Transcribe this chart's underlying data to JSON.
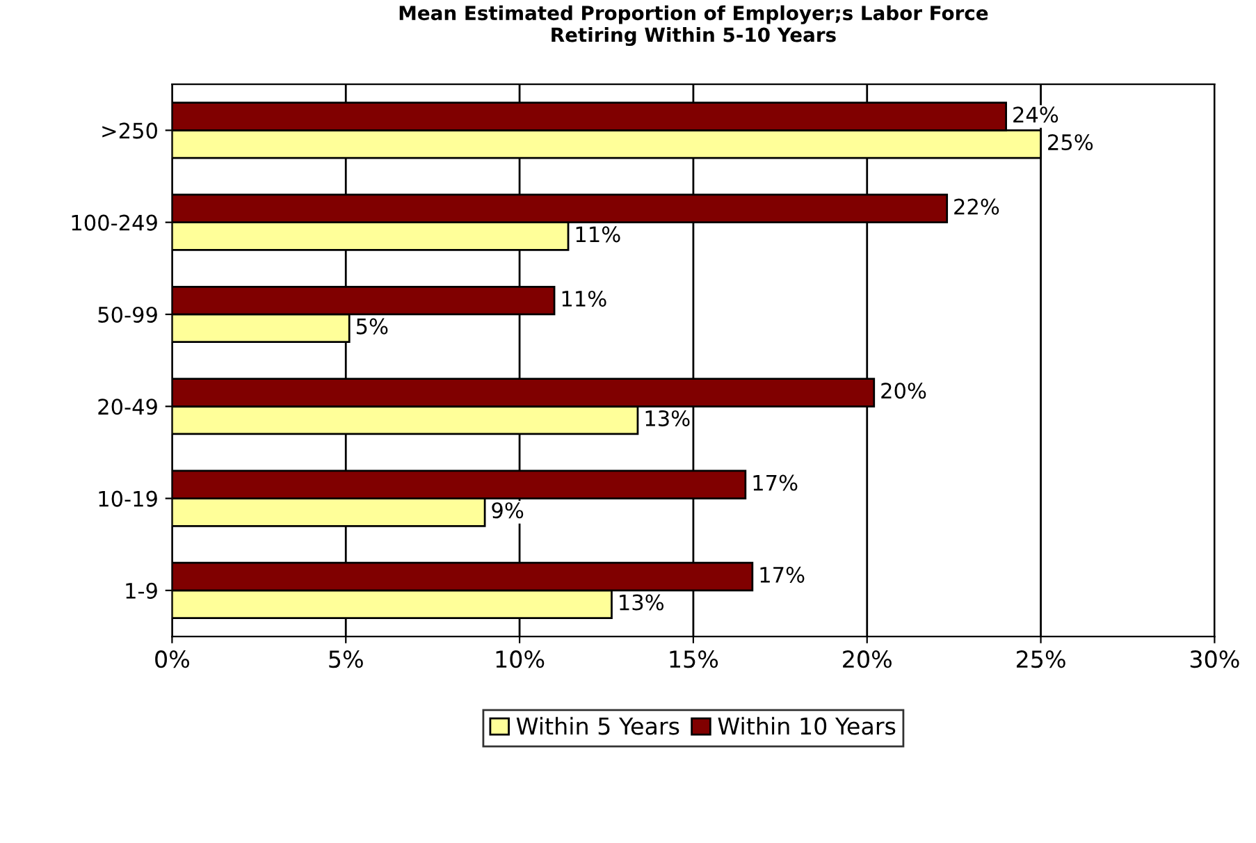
{
  "chart_data": {
    "type": "bar",
    "orientation": "horizontal",
    "title": "Mean Estimated Proportion of Employer;s Labor Force\nRetiring Within 5-10 Years",
    "categories": [
      ">250",
      "100-249",
      "50-99",
      "20-49",
      "10-19",
      "1-9"
    ],
    "series": [
      {
        "name": "Within 5 Years",
        "color": "#ffff99",
        "values": [
          25.0,
          11.4,
          5.1,
          13.4,
          9.0,
          12.65
        ],
        "value_labels": [
          "25%",
          "11%",
          "5%",
          "13%",
          "9%",
          "13%"
        ]
      },
      {
        "name": "Within 10 Years",
        "color": "#800000",
        "values": [
          24.0,
          22.3,
          11.0,
          20.2,
          16.5,
          16.7
        ],
        "value_labels": [
          "24%",
          "22%",
          "11%",
          "20%",
          "17%",
          "17%"
        ]
      }
    ],
    "xlim": [
      0,
      30
    ],
    "xticks": [
      {
        "value": 0,
        "label": "0%"
      },
      {
        "value": 5,
        "label": "5%"
      },
      {
        "value": 10,
        "label": "10%"
      },
      {
        "value": 15,
        "label": "15%"
      },
      {
        "value": 20,
        "label": "20%"
      },
      {
        "value": 25,
        "label": "25%"
      },
      {
        "value": 30,
        "label": "30%"
      }
    ],
    "grid": "x",
    "legend": "bottom"
  }
}
